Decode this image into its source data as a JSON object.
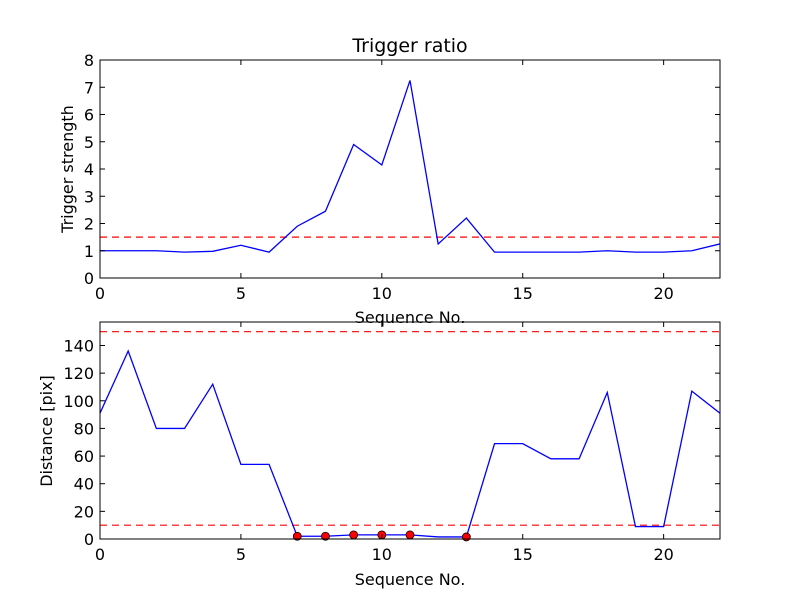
{
  "chart_data": [
    {
      "type": "line",
      "title": "Trigger ratio",
      "xlabel": "Sequence No.",
      "ylabel": "Trigger strength",
      "xlim": [
        0,
        22
      ],
      "ylim": [
        0,
        8
      ],
      "xticks": [
        0,
        5,
        10,
        15,
        20
      ],
      "yticks": [
        0,
        1,
        2,
        3,
        4,
        5,
        6,
        7,
        8
      ],
      "grid": false,
      "series": [
        {
          "style": "solid",
          "color": "#0000ff",
          "x": [
            0,
            1,
            2,
            3,
            4,
            5,
            6,
            7,
            8,
            9,
            10,
            11,
            12,
            13,
            14,
            15,
            16,
            17,
            18,
            19,
            20,
            21,
            22
          ],
          "y": [
            1.0,
            1.0,
            1.0,
            0.95,
            0.98,
            1.2,
            0.95,
            1.9,
            2.45,
            4.9,
            4.15,
            7.25,
            1.25,
            2.2,
            0.95,
            0.95,
            0.95,
            0.95,
            1.0,
            0.95,
            0.95,
            1.0,
            1.25
          ]
        }
      ],
      "hlines": [
        {
          "y": 1.5,
          "style": "dashed",
          "color": "#ff0000"
        }
      ]
    },
    {
      "type": "line",
      "title": "",
      "xlabel": "Sequence No.",
      "ylabel": "Distance [pix]",
      "xlim": [
        0,
        22
      ],
      "ylim": [
        0,
        157
      ],
      "xticks": [
        0,
        5,
        10,
        15,
        20
      ],
      "yticks": [
        0,
        20,
        40,
        60,
        80,
        100,
        120,
        140
      ],
      "grid": false,
      "series": [
        {
          "style": "solid",
          "color": "#0000ff",
          "x": [
            0,
            1,
            2,
            3,
            4,
            5,
            6,
            7,
            8,
            9,
            10,
            11,
            12,
            13,
            14,
            15,
            16,
            17,
            18,
            19,
            20,
            21,
            22
          ],
          "y": [
            91,
            136,
            80,
            80,
            112,
            54,
            54,
            2,
            2,
            3,
            3,
            3,
            1.5,
            1.5,
            69,
            69,
            58,
            58,
            106,
            9,
            9,
            107,
            91
          ]
        },
        {
          "style": "markers",
          "color": "#ff0000",
          "x": [
            7,
            8,
            9,
            10,
            11,
            13
          ],
          "y": [
            2,
            2,
            3,
            3,
            3,
            1.5
          ]
        }
      ],
      "hlines": [
        {
          "y": 150,
          "style": "dashed",
          "color": "#ff0000"
        },
        {
          "y": 10,
          "style": "dashed",
          "color": "#ff0000"
        }
      ]
    }
  ]
}
